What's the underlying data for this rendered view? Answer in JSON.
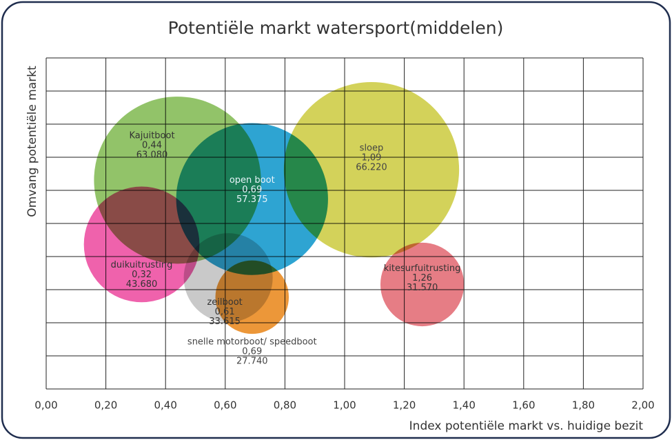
{
  "chart_data": {
    "type": "bubble",
    "title": "Potentiële markt watersport(middelen)",
    "x_label": "Index potentiële markt vs. huidige bezit",
    "y_label": "Omvang potentiële markt",
    "xlim": [
      0,
      2
    ],
    "ylim": [
      0,
      100000
    ],
    "xticks": [
      {
        "value": 0,
        "label": "0,00"
      },
      {
        "value": 0.2,
        "label": "0,20"
      },
      {
        "value": 0.4,
        "label": "0,40"
      },
      {
        "value": 0.6,
        "label": "0,60"
      },
      {
        "value": 0.8,
        "label": "0,80"
      },
      {
        "value": 1.0,
        "label": "1,00"
      },
      {
        "value": 1.2,
        "label": "1,20"
      },
      {
        "value": 1.4,
        "label": "1,40"
      },
      {
        "value": 1.6,
        "label": "1,60"
      },
      {
        "value": 1.8,
        "label": "1,80"
      },
      {
        "value": 2.0,
        "label": "2,00"
      }
    ],
    "yticks": [
      0,
      10000,
      20000,
      30000,
      40000,
      50000,
      60000,
      70000,
      80000,
      90000,
      100000
    ],
    "grid": true,
    "series": [
      {
        "name": "Kajuitboot",
        "color": "#7ab648",
        "x": [
          0.44
        ],
        "values": [
          63080
        ],
        "x_labels": [
          "0,44"
        ],
        "value_labels": [
          "63.080"
        ]
      },
      {
        "name": "sloep",
        "color": "#c9c836",
        "x": [
          1.09
        ],
        "values": [
          66220
        ],
        "x_labels": [
          "1,09"
        ],
        "value_labels": [
          "66.220"
        ]
      },
      {
        "name": "open boot",
        "color": "#0090c8",
        "x": [
          0.69
        ],
        "values": [
          57375
        ],
        "x_labels": [
          "0,69"
        ],
        "value_labels": [
          "57.375"
        ]
      },
      {
        "name": "duikuitrusting",
        "color": "#ec3f9a",
        "x": [
          0.32
        ],
        "values": [
          43680
        ],
        "x_labels": [
          "0,32"
        ],
        "value_labels": [
          "43.680"
        ]
      },
      {
        "name": "zeilboot",
        "color": "#bdbdbd",
        "x": [
          0.61
        ],
        "values": [
          33615
        ],
        "x_labels": [
          "0,61"
        ],
        "value_labels": [
          "33.615"
        ]
      },
      {
        "name": "snelle motorboot/ speedboot",
        "color": "#e8800e",
        "x": [
          0.69
        ],
        "values": [
          27740
        ],
        "x_labels": [
          "0,69"
        ],
        "value_labels": [
          "27.740"
        ]
      },
      {
        "name": "kitesurfuitrusting",
        "color": "#e0606a",
        "x": [
          1.26
        ],
        "values": [
          31570
        ],
        "x_labels": [
          "1,26"
        ],
        "value_labels": [
          "31.570"
        ]
      }
    ]
  }
}
